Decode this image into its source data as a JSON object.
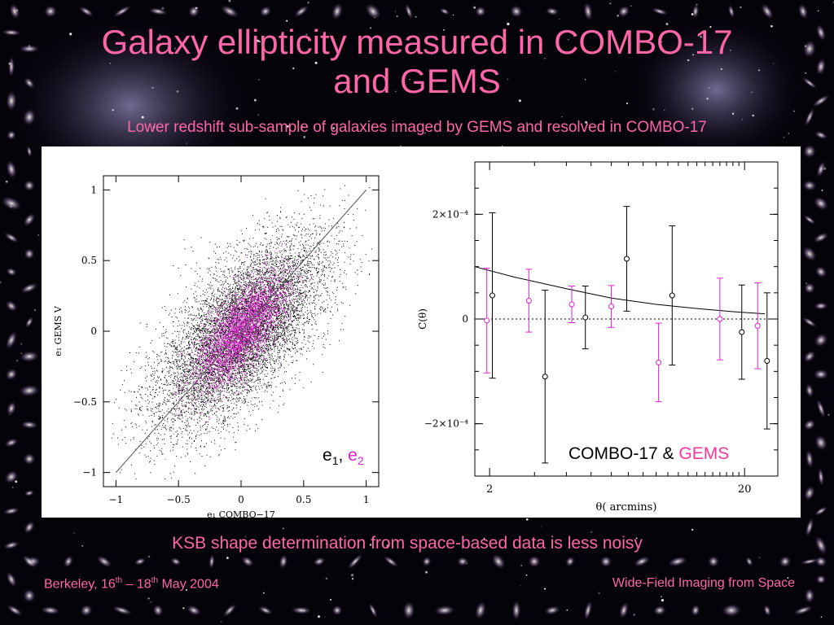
{
  "slide": {
    "title_line1": "Galaxy ellipticity measured in COMBO-17",
    "title_line2": "and GEMS",
    "subtitle": "Lower redshift sub-sample of galaxies imaged by GEMS and resolved in COMBO-17",
    "caption": "KSB shape determination from space-based data is less noisy",
    "footer_left": {
      "pre": "Berkeley, 16",
      "sup1": "th",
      "mid": " – 18",
      "sup2": "th",
      "post": " May 2004"
    },
    "footer_right": "Wide-Field Imaging from Space"
  },
  "colors": {
    "accent": "#ff66a8",
    "series_gems": "#e020d0",
    "series_combo": "#000000"
  },
  "chart_data": [
    {
      "type": "scatter",
      "xlabel": "e₁ COMBO−17",
      "ylabel": "e₁ GEMS V",
      "xlim": [
        -1.1,
        1.1
      ],
      "ylim": [
        -1.1,
        1.1
      ],
      "xticks": [
        "−1",
        "−0.5",
        "0",
        "0.5",
        "1"
      ],
      "yticks": [
        "−1",
        "−0.5",
        "0",
        "0.5",
        "1"
      ],
      "tick_values": [
        -1,
        -0.5,
        0,
        0.5,
        1
      ],
      "reference_line": {
        "x": [
          -1,
          1
        ],
        "y": [
          -1,
          1
        ]
      },
      "series": [
        {
          "name": "e1",
          "color": "#000000",
          "mean": [
            0,
            0
          ],
          "sd": [
            0.33,
            0.33
          ],
          "correlation": 0.65
        },
        {
          "name": "e2",
          "color": "#e020d0",
          "mean": [
            0,
            0
          ],
          "sd": [
            0.18,
            0.2
          ],
          "correlation": 0.7
        }
      ],
      "legend": {
        "e1": "e",
        "e1_sub": "1",
        "sep": ", ",
        "e2": "e",
        "e2_sub": "2"
      }
    },
    {
      "type": "scatter",
      "xlabel": "θ( arcmins)",
      "ylabel": "C(θ)",
      "xscale": "log",
      "xlim": [
        1.75,
        27
      ],
      "ylim": [
        -0.0003,
        0.0003
      ],
      "xticks": [
        {
          "v": 2,
          "label": "2"
        },
        {
          "v": 20,
          "label": "20"
        }
      ],
      "yticks": [
        {
          "v": 0.0002,
          "label": "2×10⁻⁴"
        },
        {
          "v": 0,
          "label": "0"
        },
        {
          "v": -0.0002,
          "label": "−2×10⁻⁴"
        }
      ],
      "model_curve": {
        "x": [
          1.75,
          2.5,
          4,
          6,
          9,
          13,
          18,
          24
        ],
        "y": [
          0.0001,
          8e-05,
          5.8e-05,
          4e-05,
          2.8e-05,
          2e-05,
          1.4e-05,
          1e-05
        ]
      },
      "series": [
        {
          "name": "COMBO-17",
          "color": "#000000",
          "x": [
            2.05,
            3.3,
            4.75,
            6.9,
            10.4,
            19.5,
            24.5
          ],
          "y": [
            4.5e-05,
            -0.00011,
            3e-06,
            0.000115,
            4.5e-05,
            -2.5e-05,
            -8e-05
          ],
          "err": [
            0.000158,
            0.000165,
            6e-05,
            0.0001,
            0.000133,
            9e-05,
            0.00013
          ]
        },
        {
          "name": "GEMS",
          "color": "#e020d0",
          "x": [
            1.95,
            2.85,
            4.2,
            6.0,
            9.2,
            16.0,
            22.5
          ],
          "y": [
            -3e-06,
            3.5e-05,
            2.8e-05,
            2.4e-05,
            -8.3e-05,
            0.0,
            -1.3e-05
          ],
          "err": [
            0.0001,
            6e-05,
            3.5e-05,
            4e-05,
            7.5e-05,
            7.8e-05,
            8.2e-05
          ]
        }
      ],
      "legend": {
        "combo": "COMBO-17",
        "amp": " & ",
        "gems": "GEMS"
      }
    }
  ]
}
